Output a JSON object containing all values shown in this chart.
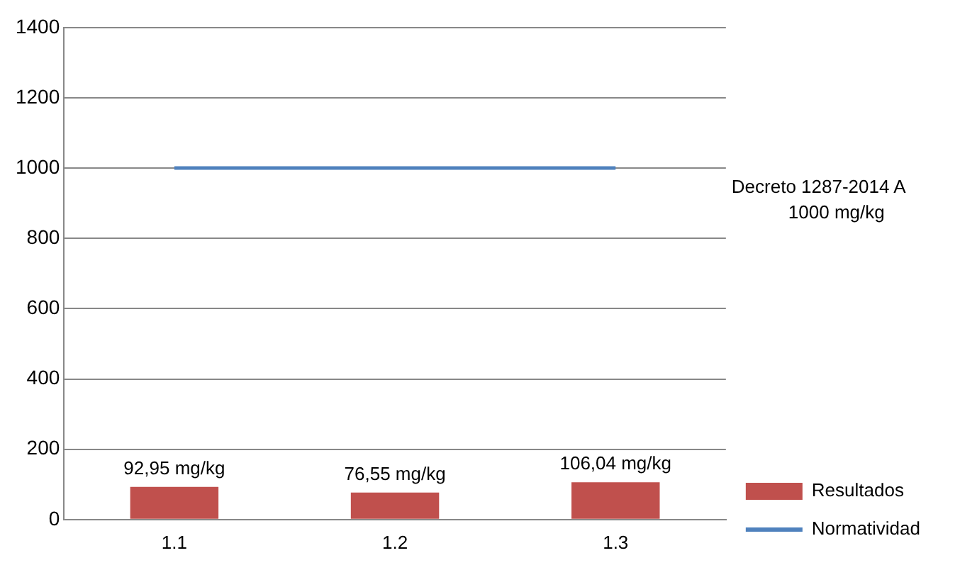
{
  "chart_data": {
    "type": "bar",
    "categories": [
      "1.1",
      "1.2",
      "1.3"
    ],
    "series": [
      {
        "name": "Resultados",
        "color": "#c0504d",
        "values": [
          92.95,
          76.55,
          106.04
        ],
        "value_labels": [
          "92,95 mg/kg",
          "76,55 mg/kg",
          "106,04 mg/kg"
        ]
      },
      {
        "name": "Normatividad",
        "type": "line",
        "color": "#4f81bd",
        "values": [
          1000,
          1000,
          1000
        ]
      }
    ],
    "annotations": [
      "Decreto 1287-2014 A",
      "1000 mg/kg"
    ],
    "ylim": [
      0,
      1400
    ],
    "yticks": [
      0,
      200,
      400,
      600,
      800,
      1000,
      1200,
      1400
    ],
    "grid": "y",
    "legend": "bottom right",
    "marker": "none"
  }
}
